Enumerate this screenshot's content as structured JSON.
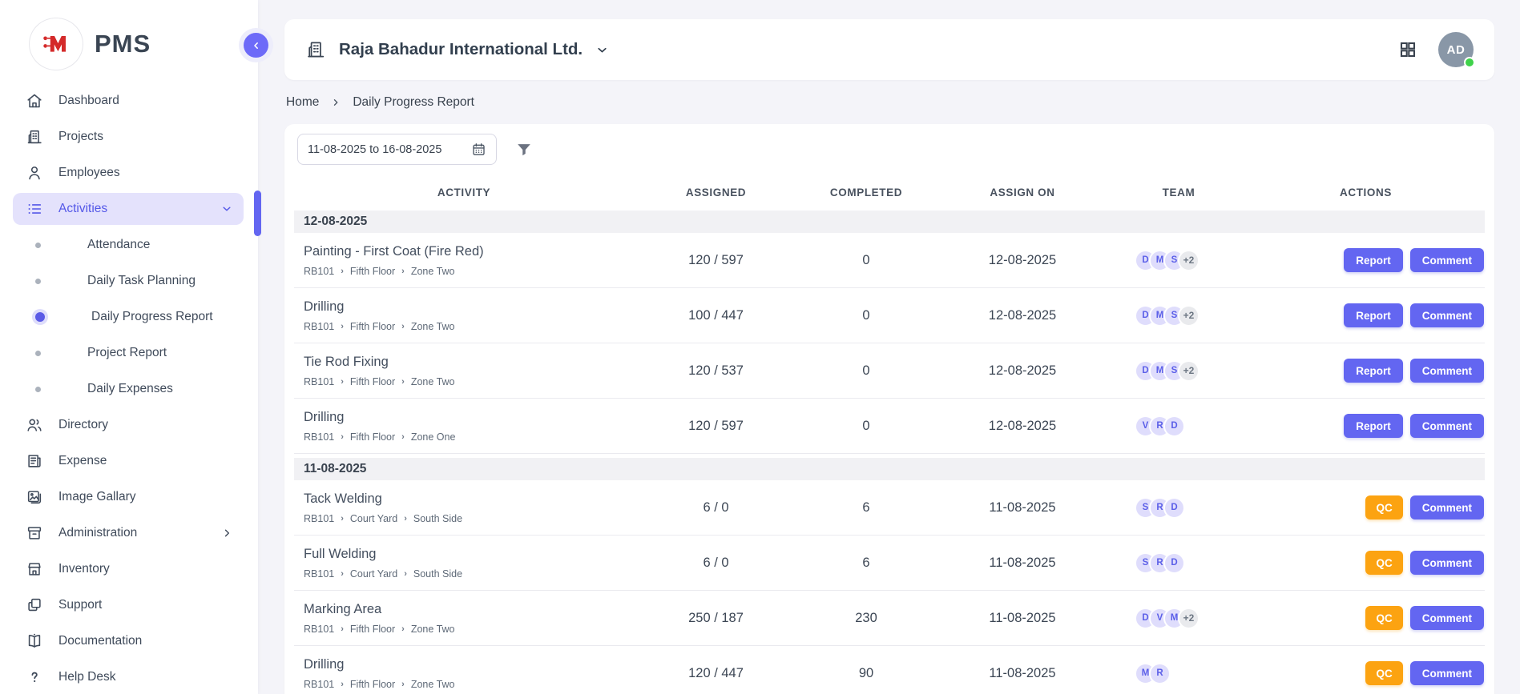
{
  "app": {
    "name": "PMS"
  },
  "sidebar": {
    "items": [
      {
        "label": "Dashboard",
        "icon": "home"
      },
      {
        "label": "Projects",
        "icon": "building"
      },
      {
        "label": "Employees",
        "icon": "person"
      },
      {
        "label": "Activities",
        "icon": "list",
        "active": true,
        "chevron": "down"
      },
      {
        "label": "Attendance",
        "sub": true
      },
      {
        "label": "Daily Task Planning",
        "sub": true
      },
      {
        "label": "Daily Progress Report",
        "sub": true,
        "active": true
      },
      {
        "label": "Project Report",
        "sub": true
      },
      {
        "label": "Daily Expenses",
        "sub": true
      },
      {
        "label": "Directory",
        "icon": "people"
      },
      {
        "label": "Expense",
        "icon": "receipt"
      },
      {
        "label": "Image Gallary",
        "icon": "image"
      },
      {
        "label": "Administration",
        "icon": "archive",
        "chevron": "right"
      },
      {
        "label": "Inventory",
        "icon": "store"
      },
      {
        "label": "Support",
        "icon": "squares"
      },
      {
        "label": "Documentation",
        "icon": "book"
      },
      {
        "label": "Help Desk",
        "icon": "question"
      }
    ]
  },
  "header": {
    "company": "Raja Bahadur International Ltd.",
    "avatar_initials": "AD"
  },
  "breadcrumb": {
    "home": "Home",
    "current": "Daily Progress Report"
  },
  "filters": {
    "date_range": "11-08-2025 to 16-08-2025"
  },
  "table": {
    "columns": [
      "ACTIVITY",
      "ASSIGNED",
      "COMPLETED",
      "ASSIGN ON",
      "TEAM",
      "ACTIONS"
    ],
    "groups": [
      {
        "date": "12-08-2025",
        "rows": [
          {
            "name": "Painting - First Coat (Fire Red)",
            "path": [
              "RB101",
              "Fifth Floor",
              "Zone Two"
            ],
            "assigned": "120 / 597",
            "completed": "0",
            "assign_on": "12-08-2025",
            "team": [
              "D",
              "M",
              "S"
            ],
            "team_extra": "+2",
            "actions": [
              "Report",
              "Comment"
            ]
          },
          {
            "name": "Drilling",
            "path": [
              "RB101",
              "Fifth Floor",
              "Zone Two"
            ],
            "assigned": "100 / 447",
            "completed": "0",
            "assign_on": "12-08-2025",
            "team": [
              "D",
              "M",
              "S"
            ],
            "team_extra": "+2",
            "actions": [
              "Report",
              "Comment"
            ]
          },
          {
            "name": "Tie Rod Fixing",
            "path": [
              "RB101",
              "Fifth Floor",
              "Zone Two"
            ],
            "assigned": "120 / 537",
            "completed": "0",
            "assign_on": "12-08-2025",
            "team": [
              "D",
              "M",
              "S"
            ],
            "team_extra": "+2",
            "actions": [
              "Report",
              "Comment"
            ]
          },
          {
            "name": "Drilling",
            "path": [
              "RB101",
              "Fifth Floor",
              "Zone One"
            ],
            "assigned": "120 / 597",
            "completed": "0",
            "assign_on": "12-08-2025",
            "team": [
              "V",
              "R",
              "D"
            ],
            "team_extra": null,
            "actions": [
              "Report",
              "Comment"
            ]
          }
        ]
      },
      {
        "date": "11-08-2025",
        "rows": [
          {
            "name": "Tack Welding",
            "path": [
              "RB101",
              "Court Yard",
              "South Side"
            ],
            "assigned": "6 / 0",
            "completed": "6",
            "assign_on": "11-08-2025",
            "team": [
              "S",
              "R",
              "D"
            ],
            "team_extra": null,
            "actions": [
              "QC",
              "Comment"
            ]
          },
          {
            "name": "Full Welding",
            "path": [
              "RB101",
              "Court Yard",
              "South Side"
            ],
            "assigned": "6 / 0",
            "completed": "6",
            "assign_on": "11-08-2025",
            "team": [
              "S",
              "R",
              "D"
            ],
            "team_extra": null,
            "actions": [
              "QC",
              "Comment"
            ]
          },
          {
            "name": "Marking Area",
            "path": [
              "RB101",
              "Fifth Floor",
              "Zone Two"
            ],
            "assigned": "250 / 187",
            "completed": "230",
            "assign_on": "11-08-2025",
            "team": [
              "D",
              "V",
              "M"
            ],
            "team_extra": "+2",
            "actions": [
              "QC",
              "Comment"
            ]
          },
          {
            "name": "Drilling",
            "path": [
              "RB101",
              "Fifth Floor",
              "Zone Two"
            ],
            "assigned": "120 / 447",
            "completed": "90",
            "assign_on": "11-08-2025",
            "team": [
              "M",
              "R"
            ],
            "team_extra": null,
            "actions": [
              "QC",
              "Comment"
            ]
          }
        ]
      }
    ]
  },
  "colors": {
    "page_bg": "#F4F4F9",
    "accent": "#6366F1",
    "qc_orange": "#FCA311",
    "badge_bg": "#DFDDFC",
    "badge_text": "#5B5FE8",
    "avatar_bg": "#8997A7",
    "online_green": "#3FD24A",
    "logo_red": "#D42A2A"
  }
}
